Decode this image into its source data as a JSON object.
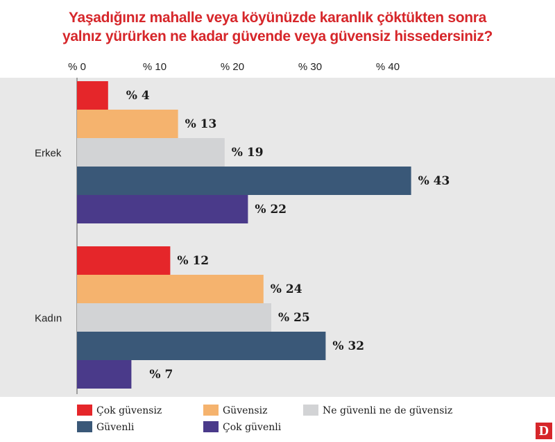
{
  "title_line1": "Yaşadığınız mahalle veya köyünüzde karanlık çöktükten sonra",
  "title_line2": "yalnız yürürken ne kadar güvende veya güvensiz hissedersiniz?",
  "logo_text": "D",
  "colors": {
    "title": "#d6262a",
    "panel": "#e8e8e8",
    "series": [
      "#e5262a",
      "#f5b36e",
      "#d2d3d5",
      "#3a5878",
      "#4a3a8a"
    ]
  },
  "chart_data": {
    "type": "bar",
    "orientation": "horizontal",
    "title": "Yaşadığınız mahalle veya köyünüzde karanlık çöktükten sonra yalnız yürürken ne kadar güvende veya güvensiz hissedersiniz?",
    "categories": [
      "Erkek",
      "Kadın"
    ],
    "series": [
      {
        "name": "Çok güvensiz",
        "values": [
          4,
          12
        ]
      },
      {
        "name": "Güvensiz",
        "values": [
          13,
          24
        ]
      },
      {
        "name": "Ne güvenli ne de güvensiz",
        "values": [
          19,
          25
        ]
      },
      {
        "name": "Güvenli",
        "values": [
          43,
          32
        ]
      },
      {
        "name": "Çok güvenli",
        "values": [
          22,
          7
        ]
      }
    ],
    "value_prefix": "%",
    "xticks": [
      0,
      10,
      20,
      30,
      40
    ],
    "xtick_labels": [
      "% 0",
      "% 10",
      "% 20",
      "% 30",
      "% 40"
    ],
    "xlim": [
      0,
      45
    ],
    "xlabel": "",
    "ylabel": "",
    "grid": false,
    "legend_position": "bottom"
  }
}
